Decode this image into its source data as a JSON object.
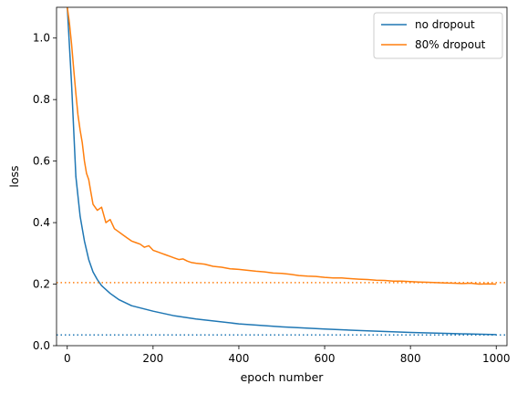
{
  "chart_data": {
    "type": "line",
    "title": "",
    "xlabel": "epoch number",
    "ylabel": "loss",
    "xlim": [
      -25,
      1025
    ],
    "ylim": [
      0.0,
      1.1
    ],
    "xticks": [
      "0",
      "200",
      "400",
      "600",
      "800",
      "1000"
    ],
    "xtick_values": [
      0,
      200,
      400,
      600,
      800,
      1000
    ],
    "yticks": [
      "0.0",
      "0.2",
      "0.4",
      "0.6",
      "0.8",
      "1.0"
    ],
    "ytick_values": [
      0.0,
      0.2,
      0.4,
      0.6,
      0.8,
      1.0
    ],
    "grid": false,
    "legend_position": "top-right",
    "series": [
      {
        "name": "no dropout",
        "color": "#1f77b4",
        "style": "solid",
        "x": [
          0,
          10,
          20,
          30,
          40,
          50,
          60,
          70,
          80,
          100,
          120,
          150,
          200,
          250,
          300,
          400,
          500,
          600,
          700,
          800,
          900,
          1000
        ],
        "values": [
          1.1,
          0.85,
          0.55,
          0.42,
          0.34,
          0.28,
          0.24,
          0.215,
          0.195,
          0.17,
          0.15,
          0.13,
          0.112,
          0.097,
          0.087,
          0.071,
          0.061,
          0.054,
          0.048,
          0.043,
          0.039,
          0.036
        ]
      },
      {
        "name": "80% dropout",
        "color": "#ff7f0e",
        "style": "solid",
        "x": [
          0,
          5,
          10,
          15,
          20,
          25,
          30,
          35,
          40,
          45,
          50,
          55,
          60,
          70,
          80,
          90,
          100,
          110,
          120,
          130,
          140,
          150,
          160,
          170,
          180,
          190,
          200,
          210,
          220,
          230,
          240,
          250,
          260,
          270,
          280,
          290,
          300,
          320,
          340,
          360,
          380,
          400,
          420,
          440,
          460,
          480,
          500,
          520,
          540,
          560,
          580,
          600,
          620,
          640,
          660,
          680,
          700,
          720,
          740,
          760,
          780,
          800,
          820,
          840,
          860,
          880,
          900,
          920,
          940,
          960,
          980,
          1000
        ],
        "values": [
          1.1,
          1.05,
          0.98,
          0.9,
          0.82,
          0.75,
          0.7,
          0.66,
          0.6,
          0.56,
          0.54,
          0.5,
          0.46,
          0.44,
          0.45,
          0.4,
          0.41,
          0.38,
          0.37,
          0.36,
          0.35,
          0.34,
          0.335,
          0.33,
          0.32,
          0.325,
          0.31,
          0.305,
          0.3,
          0.295,
          0.29,
          0.285,
          0.28,
          0.282,
          0.275,
          0.27,
          0.268,
          0.265,
          0.258,
          0.255,
          0.25,
          0.248,
          0.245,
          0.242,
          0.24,
          0.236,
          0.235,
          0.232,
          0.228,
          0.226,
          0.225,
          0.222,
          0.22,
          0.22,
          0.218,
          0.216,
          0.215,
          0.213,
          0.212,
          0.21,
          0.21,
          0.208,
          0.207,
          0.206,
          0.205,
          0.204,
          0.203,
          0.202,
          0.203,
          0.2,
          0.201,
          0.2
        ]
      }
    ],
    "reference_lines": [
      {
        "orientation": "horizontal",
        "y": 0.035,
        "color": "#1f77b4",
        "style": "dotted"
      },
      {
        "orientation": "horizontal",
        "y": 0.205,
        "color": "#ff7f0e",
        "style": "dotted"
      }
    ]
  }
}
